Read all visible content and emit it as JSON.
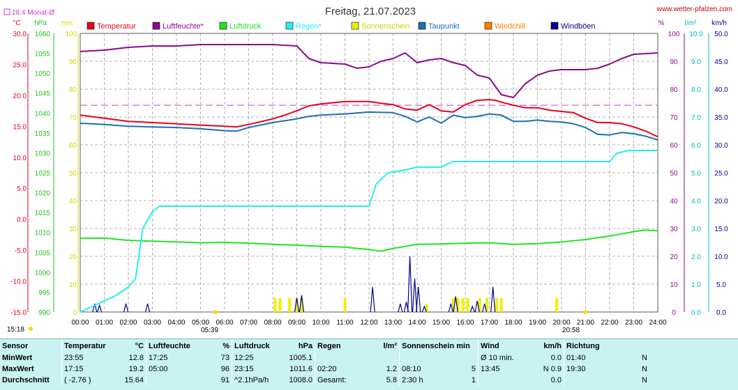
{
  "title": "Freitag, 21.07.2023",
  "source": "www.wetter-pfalzen.com",
  "monthly_avg": "18.4 Monat-Ø",
  "sunrise_label": "05:39",
  "sunset_label": "20:58",
  "bottom_left_time": "15:18",
  "colors": {
    "temperature": "#e8001c",
    "humidity": "#8b0a8b",
    "pressure": "#22e322",
    "rain": "#22f0f0",
    "sun": "#f0f000",
    "dewpoint": "#1a6fb5",
    "windchill": "#ff7f00",
    "gusts": "#000090",
    "avg_line": "#cc66cc"
  },
  "chart_data": {
    "type": "line",
    "title": "Freitag, 21.07.2023",
    "x_labels": [
      "00:00",
      "01:00",
      "02:00",
      "03:00",
      "04:00",
      "05:00",
      "06:00",
      "07:00",
      "08:00",
      "09:00",
      "10:00",
      "11:00",
      "12:00",
      "13:00",
      "14:00",
      "15:00",
      "16:00",
      "17:00",
      "18:00",
      "19:00",
      "20:00",
      "21:00",
      "22:00",
      "23:00",
      "24:00"
    ],
    "axes": {
      "temp": {
        "unit": "°C",
        "min": -15,
        "max": 30,
        "ticks": [
          "30.0",
          "25.0",
          "20.0",
          "15.0",
          "10.0",
          "5.0",
          "0.0",
          "-5.0",
          "-10.0",
          "-15.0"
        ]
      },
      "pressure": {
        "unit": "hPa",
        "min": 990,
        "max": 1060,
        "ticks": [
          "1060",
          "1055",
          "1050",
          "1045",
          "1040",
          "1035",
          "1030",
          "1025",
          "1020",
          "1015",
          "1010",
          "1005",
          "1000",
          "995",
          "990"
        ]
      },
      "sun_min": {
        "unit": "min",
        "min": 0,
        "max": 100,
        "ticks": [
          "100",
          "90",
          "80",
          "70",
          "60",
          "50",
          "40",
          "30",
          "20",
          "10",
          "0"
        ]
      },
      "humidity": {
        "unit": "%",
        "min": 0,
        "max": 100,
        "ticks": [
          "100",
          "90",
          "80",
          "70",
          "60",
          "50",
          "40",
          "30",
          "20",
          "10",
          "0"
        ]
      },
      "rain": {
        "unit": "l/m²",
        "min": 0,
        "max": 10,
        "ticks": [
          "10.0",
          "9.0",
          "8.0",
          "7.0",
          "6.0",
          "5.0",
          "4.0",
          "3.0",
          "2.0",
          "1.0",
          "0.0"
        ]
      },
      "wind": {
        "unit": "km/h",
        "min": 0,
        "max": 50,
        "ticks": [
          "50.0",
          "45.0",
          "40.0",
          "35.0",
          "30.0",
          "25.0",
          "20.0",
          "15.0",
          "10.0",
          "5.0",
          "0.0"
        ]
      }
    },
    "monthly_average_temp": 18.4,
    "legend": [
      "Temperatur",
      "Luftfeuchte*",
      "Luftdruck",
      "Regen*",
      "Sonnenschein",
      "Taupunkt",
      "Windchill",
      "Windböen"
    ],
    "series": [
      {
        "name": "Temperatur",
        "axis": "temp",
        "points": [
          [
            0,
            16.8
          ],
          [
            1,
            16.3
          ],
          [
            2,
            15.8
          ],
          [
            3,
            15.6
          ],
          [
            4,
            15.4
          ],
          [
            5,
            15.2
          ],
          [
            6,
            15.0
          ],
          [
            6.5,
            14.9
          ],
          [
            7,
            15.3
          ],
          [
            8,
            16.2
          ],
          [
            8.5,
            16.8
          ],
          [
            9,
            17.5
          ],
          [
            9.5,
            18.3
          ],
          [
            10,
            18.6
          ],
          [
            11,
            19.0
          ],
          [
            12,
            19.0
          ],
          [
            12.5,
            18.7
          ],
          [
            13,
            18.5
          ],
          [
            13.5,
            17.8
          ],
          [
            14,
            17.6
          ],
          [
            14.5,
            18.5
          ],
          [
            15,
            17.5
          ],
          [
            15.5,
            17.3
          ],
          [
            16,
            18.5
          ],
          [
            16.5,
            19.2
          ],
          [
            17,
            19.3
          ],
          [
            17.25,
            19.2
          ],
          [
            17.5,
            18.9
          ],
          [
            18,
            18.4
          ],
          [
            18.5,
            18.0
          ],
          [
            19,
            18.0
          ],
          [
            19.5,
            17.6
          ],
          [
            20,
            17.4
          ],
          [
            20.5,
            17.2
          ],
          [
            21,
            16.3
          ],
          [
            21.5,
            15.6
          ],
          [
            22,
            15.6
          ],
          [
            22.5,
            15.4
          ],
          [
            23,
            14.9
          ],
          [
            23.5,
            14.2
          ],
          [
            24,
            13.3
          ]
        ]
      },
      {
        "name": "Luftfeuchte*",
        "axis": "humidity",
        "points": [
          [
            0,
            93.5
          ],
          [
            1,
            94
          ],
          [
            2,
            95
          ],
          [
            3,
            95.5
          ],
          [
            4,
            95.5
          ],
          [
            5,
            96
          ],
          [
            6,
            96
          ],
          [
            7,
            96
          ],
          [
            8,
            96
          ],
          [
            9,
            95.5
          ],
          [
            9.5,
            91
          ],
          [
            10,
            89.5
          ],
          [
            11,
            89
          ],
          [
            11.5,
            87.5
          ],
          [
            12,
            88
          ],
          [
            12.5,
            90
          ],
          [
            13,
            91
          ],
          [
            13.5,
            93
          ],
          [
            14,
            89.5
          ],
          [
            14.5,
            90.5
          ],
          [
            15,
            91
          ],
          [
            15.5,
            89.5
          ],
          [
            16,
            88.5
          ],
          [
            16.5,
            85
          ],
          [
            17,
            84
          ],
          [
            17.25,
            81
          ],
          [
            17.5,
            78
          ],
          [
            18,
            77
          ],
          [
            18.5,
            82
          ],
          [
            19,
            85
          ],
          [
            19.5,
            86.5
          ],
          [
            20,
            87
          ],
          [
            21,
            87
          ],
          [
            21.5,
            87.5
          ],
          [
            22,
            89
          ],
          [
            22.5,
            91
          ],
          [
            23,
            92.5
          ],
          [
            24,
            93
          ]
        ]
      },
      {
        "name": "Luftdruck",
        "axis": "pressure",
        "points": [
          [
            0,
            1008.5
          ],
          [
            1,
            1008.6
          ],
          [
            2,
            1008.0
          ],
          [
            3,
            1007.8
          ],
          [
            4,
            1007.6
          ],
          [
            5,
            1007.4
          ],
          [
            6,
            1007.5
          ],
          [
            7,
            1007.3
          ],
          [
            8,
            1007.0
          ],
          [
            9,
            1006.8
          ],
          [
            10,
            1006.5
          ],
          [
            11,
            1006.3
          ],
          [
            12,
            1005.7
          ],
          [
            12.5,
            1005.3
          ],
          [
            13,
            1006.0
          ],
          [
            14,
            1007.0
          ],
          [
            15,
            1007.1
          ],
          [
            16,
            1007.3
          ],
          [
            17,
            1007.4
          ],
          [
            18,
            1007.0
          ],
          [
            19,
            1007.2
          ],
          [
            20,
            1007.6
          ],
          [
            21,
            1008.2
          ],
          [
            22,
            1009.1
          ],
          [
            23,
            1010.2
          ],
          [
            23.5,
            1010.6
          ],
          [
            24,
            1010.4
          ]
        ]
      },
      {
        "name": "Regen*",
        "axis": "rain",
        "points": [
          [
            0,
            0
          ],
          [
            0.5,
            0.2
          ],
          [
            1,
            0.4
          ],
          [
            1.5,
            0.6
          ],
          [
            2,
            0.9
          ],
          [
            2.3,
            1.2
          ],
          [
            2.6,
            3.0
          ],
          [
            3,
            3.6
          ],
          [
            3.3,
            3.8
          ],
          [
            4,
            3.8
          ],
          [
            6,
            3.8
          ],
          [
            8,
            3.8
          ],
          [
            10,
            3.8
          ],
          [
            12,
            3.8
          ],
          [
            12.3,
            4.6
          ],
          [
            12.8,
            5.0
          ],
          [
            13.5,
            5.1
          ],
          [
            14,
            5.2
          ],
          [
            15,
            5.2
          ],
          [
            15.5,
            5.4
          ],
          [
            16,
            5.4
          ],
          [
            18,
            5.4
          ],
          [
            20,
            5.4
          ],
          [
            21,
            5.4
          ],
          [
            22,
            5.4
          ],
          [
            22.3,
            5.7
          ],
          [
            22.8,
            5.8
          ],
          [
            24,
            5.8
          ]
        ]
      },
      {
        "name": "Taupunkt",
        "axis": "temp",
        "points": [
          [
            0,
            15.5
          ],
          [
            1,
            15.3
          ],
          [
            2,
            15.0
          ],
          [
            3,
            14.9
          ],
          [
            4,
            14.8
          ],
          [
            5,
            14.6
          ],
          [
            6,
            14.3
          ],
          [
            6.5,
            14.2
          ],
          [
            7,
            14.8
          ],
          [
            8,
            15.6
          ],
          [
            9,
            16.2
          ],
          [
            9.5,
            16.6
          ],
          [
            10,
            16.8
          ],
          [
            11,
            17.0
          ],
          [
            12,
            17.3
          ],
          [
            13,
            17.2
          ],
          [
            13.5,
            16.6
          ],
          [
            14,
            15.7
          ],
          [
            14.5,
            16.5
          ],
          [
            15,
            15.5
          ],
          [
            15.5,
            16.8
          ],
          [
            16,
            16.4
          ],
          [
            16.5,
            16.6
          ],
          [
            17,
            17.0
          ],
          [
            17.5,
            16.8
          ],
          [
            18,
            15.8
          ],
          [
            18.5,
            15.8
          ],
          [
            19,
            16.0
          ],
          [
            19.5,
            15.8
          ],
          [
            20,
            15.7
          ],
          [
            20.5,
            15.4
          ],
          [
            21,
            14.8
          ],
          [
            21.5,
            13.7
          ],
          [
            22,
            13.6
          ],
          [
            22.5,
            14.0
          ],
          [
            23,
            13.8
          ],
          [
            23.5,
            13.4
          ],
          [
            24,
            12.8
          ]
        ]
      }
    ],
    "gusts": {
      "name": "Windböen",
      "axis": "wind",
      "bars": [
        [
          0.6,
          1.5
        ],
        [
          0.8,
          1.2
        ],
        [
          1.9,
          1.5
        ],
        [
          2.8,
          1.5
        ],
        [
          9.0,
          2.5
        ],
        [
          9.2,
          3.0
        ],
        [
          12.15,
          4.5
        ],
        [
          13.3,
          1.5
        ],
        [
          13.55,
          1.8
        ],
        [
          13.7,
          10.0
        ],
        [
          13.9,
          6.0
        ],
        [
          14.05,
          4.5
        ],
        [
          14.3,
          1.0
        ],
        [
          15.4,
          1.5
        ],
        [
          15.6,
          2.8
        ],
        [
          16.3,
          1.0
        ],
        [
          16.5,
          2.0
        ],
        [
          16.8,
          1.5
        ],
        [
          17.15,
          4.5
        ]
      ]
    },
    "sunshine": {
      "name": "Sonnenschein",
      "axis": "sun_min",
      "bars": [
        [
          8.1,
          5
        ],
        [
          8.3,
          5
        ],
        [
          8.7,
          5
        ],
        [
          9.0,
          5
        ],
        [
          9.2,
          5
        ],
        [
          11.0,
          5
        ],
        [
          14.4,
          3
        ],
        [
          15.5,
          5
        ],
        [
          15.7,
          5
        ],
        [
          15.9,
          5
        ],
        [
          16.1,
          5
        ],
        [
          16.6,
          5
        ],
        [
          16.9,
          5
        ],
        [
          17.3,
          5
        ],
        [
          17.5,
          5
        ],
        [
          19.8,
          5
        ]
      ]
    }
  },
  "stats": {
    "headers": {
      "sensor": "Sensor",
      "temp": "Temperatur",
      "temp_u": "°C",
      "hum": "Luftfeuchte",
      "hum_u": "%",
      "press": "Luftdruck",
      "press_u": "hPa",
      "rain": "Regen",
      "rain_u": "l/m²",
      "sun": "Sonnenschein min",
      "wind": "Wind",
      "wind_u": "km/h",
      "dir": "Richtung"
    },
    "rows": [
      {
        "label": "MinWert",
        "t_time": "23:55",
        "t_val": "12.8",
        "h_time": "17:25",
        "h_val": "73",
        "p_time": "12:25",
        "p_val": "1005.1",
        "r_time": "",
        "r_val": "",
        "s_time": "",
        "s_val": "",
        "w_time": "Ø 10 min.",
        "w_val": "0.0",
        "d_time": "01:40",
        "d_val": "N"
      },
      {
        "label": "MaxWert",
        "t_time": "17:15",
        "t_val": "19.2",
        "h_time": "05:00",
        "h_val": "96",
        "p_time": "23:15",
        "p_val": "1011.6",
        "r_time": "02:20",
        "r_val": "1.2",
        "s_time": "08:10",
        "s_val": "5",
        "w_time": "13:45",
        "w_val": "N 0.9",
        "d_time": "19:30",
        "d_val": "N"
      },
      {
        "label": "Durchschnitt",
        "t_time": "( -2.76 )",
        "t_val": "15.64",
        "h_time": "",
        "h_val": "91",
        "p_time": "^2.1hPa/h",
        "p_val": "1008.0",
        "r_time": "Gesamt:",
        "r_val": "5.8",
        "s_time": "2:30 h",
        "s_val": "1",
        "w_time": "",
        "w_val": "0.0",
        "d_time": "",
        "d_val": "N"
      }
    ]
  }
}
